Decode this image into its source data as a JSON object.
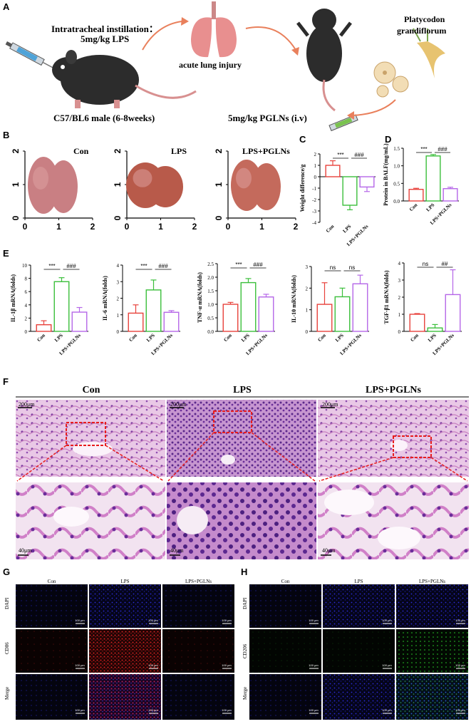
{
  "panels": {
    "A": "A",
    "B": "B",
    "C": "C",
    "D": "D",
    "E": "E",
    "F": "F",
    "G": "G",
    "H": "H"
  },
  "panelA": {
    "instill_line1": "Intratracheal instillation：",
    "instill_line2": "5mg/kg LPS",
    "lung_label": "acute lung injury",
    "herb_line1": "Platycodon",
    "herb_line2": "grandiflorum",
    "mouse_label": "C57/BL6 male  (6-8weeks)",
    "treatment_label": "5mg/kg PGLNs  (i.v)"
  },
  "panelB": {
    "groups": [
      "Con",
      "LPS",
      "LPS+PGLNs"
    ],
    "x_ticks": [
      "0",
      "1",
      "2"
    ],
    "y_ticks": [
      "2",
      "1",
      "0"
    ]
  },
  "colors": {
    "con": "#e8413b",
    "lps": "#3bbf3b",
    "pglns": "#b566e8",
    "nucleus": "#2b2bd8",
    "cd86": "#d02020",
    "cd206": "#20a020",
    "he": "#c070b8"
  },
  "chart_data": [
    {
      "panel": "C",
      "type": "bar",
      "categories": [
        "Con",
        "LPS",
        "LPS+PGLNs"
      ],
      "values": [
        1.0,
        -2.5,
        -0.9
      ],
      "errors": [
        0.4,
        0.4,
        0.4
      ],
      "ylabel": "Weight difference/g",
      "ylim": [
        -4,
        2
      ],
      "yticks": [
        -4,
        -3,
        -2,
        -1,
        0,
        1,
        2
      ],
      "sig": [
        {
          "from": 0,
          "to": 1,
          "text": "***"
        },
        {
          "from": 1,
          "to": 2,
          "text": "###"
        }
      ]
    },
    {
      "panel": "D",
      "type": "bar",
      "categories": [
        "Con",
        "LPS",
        "LPS+PGLNs"
      ],
      "values": [
        0.33,
        1.28,
        0.35
      ],
      "errors": [
        0.03,
        0.04,
        0.04
      ],
      "ylabel": "Protein in BALF(mg/mL)",
      "ylim": [
        0,
        1.5
      ],
      "yticks": [
        0.0,
        0.5,
        1.0,
        1.5
      ],
      "ytick_labels": [
        "0.0",
        "0.5",
        "1.0",
        "1.5"
      ],
      "sig": [
        {
          "from": 0,
          "to": 1,
          "text": "***"
        },
        {
          "from": 1,
          "to": 2,
          "text": "###"
        }
      ]
    },
    {
      "panel": "E1",
      "type": "bar",
      "categories": [
        "Con",
        "LPS",
        "LPS+PGLNs"
      ],
      "values": [
        1.0,
        7.5,
        2.9
      ],
      "errors": [
        0.6,
        0.6,
        0.7
      ],
      "ylabel": "IL-1β mRNA(folds)",
      "ylim": [
        0,
        10
      ],
      "yticks": [
        0,
        2,
        4,
        6,
        8,
        10
      ],
      "sig": [
        {
          "from": 0,
          "to": 1,
          "text": "***"
        },
        {
          "from": 1,
          "to": 2,
          "text": "###"
        }
      ]
    },
    {
      "panel": "E2",
      "type": "bar",
      "categories": [
        "Con",
        "LPS",
        "LPS+PGLNs"
      ],
      "values": [
        1.1,
        2.5,
        1.15
      ],
      "errors": [
        0.5,
        0.6,
        0.1
      ],
      "ylabel": "IL-6 mRNA(folds)",
      "ylim": [
        0,
        4
      ],
      "yticks": [
        0,
        1,
        2,
        3,
        4
      ],
      "sig": [
        {
          "from": 0,
          "to": 1,
          "text": "***"
        },
        {
          "from": 1,
          "to": 2,
          "text": "###"
        }
      ]
    },
    {
      "panel": "E3",
      "type": "bar",
      "categories": [
        "Con",
        "LPS",
        "LPS+PGLNs"
      ],
      "values": [
        1.0,
        1.8,
        1.27
      ],
      "errors": [
        0.07,
        0.15,
        0.1
      ],
      "ylabel": "TNF-α mRNA(folds)",
      "ylim": [
        0,
        2.5
      ],
      "yticks": [
        0.0,
        0.5,
        1.0,
        1.5,
        2.0,
        2.5
      ],
      "ytick_labels": [
        "0.0",
        "0.5",
        "1.0",
        "1.5",
        "2.0",
        "2.5"
      ],
      "sig": [
        {
          "from": 0,
          "to": 1,
          "text": "***"
        },
        {
          "from": 1,
          "to": 2,
          "text": "###"
        }
      ]
    },
    {
      "panel": "E4",
      "type": "bar",
      "categories": [
        "Con",
        "LPS",
        "LPS+PGLNs"
      ],
      "values": [
        1.25,
        1.6,
        2.2
      ],
      "errors": [
        1.0,
        0.4,
        0.4
      ],
      "ylabel": "IL-10 mRNA(folds)",
      "ylim": [
        0,
        3
      ],
      "yticks": [
        0,
        1,
        2,
        3
      ],
      "sig": [
        {
          "from": 0,
          "to": 1,
          "text": "ns"
        },
        {
          "from": 1,
          "to": 2,
          "text": "ns"
        }
      ]
    },
    {
      "panel": "E5",
      "type": "bar",
      "categories": [
        "Con",
        "LPS",
        "LPS+PGLNs"
      ],
      "values": [
        1.0,
        0.2,
        2.15
      ],
      "errors": [
        0.04,
        0.2,
        1.45
      ],
      "ylabel": "TGF-β1 mRNA(folds)",
      "ylim": [
        0,
        4
      ],
      "yticks": [
        0,
        1,
        2,
        3,
        4
      ],
      "sig": [
        {
          "from": 0,
          "to": 1,
          "text": "ns"
        },
        {
          "from": 1,
          "to": 2,
          "text": "##"
        }
      ]
    }
  ],
  "panelF": {
    "groups": [
      "Con",
      "LPS",
      "LPS+PGLNs"
    ],
    "scale_top": "200μm",
    "scale_bottom": "40μm"
  },
  "panelG": {
    "groups": [
      "Con",
      "LPS",
      "LPS+PGLNs"
    ],
    "rows": [
      "DAPI",
      "CD86",
      "Merge"
    ],
    "scale": "100 μm"
  },
  "panelH": {
    "groups": [
      "Con",
      "LPS",
      "LPS+PGLNs"
    ],
    "rows": [
      "DAPI",
      "CD206",
      "Merge"
    ],
    "scale": "100 μm"
  }
}
